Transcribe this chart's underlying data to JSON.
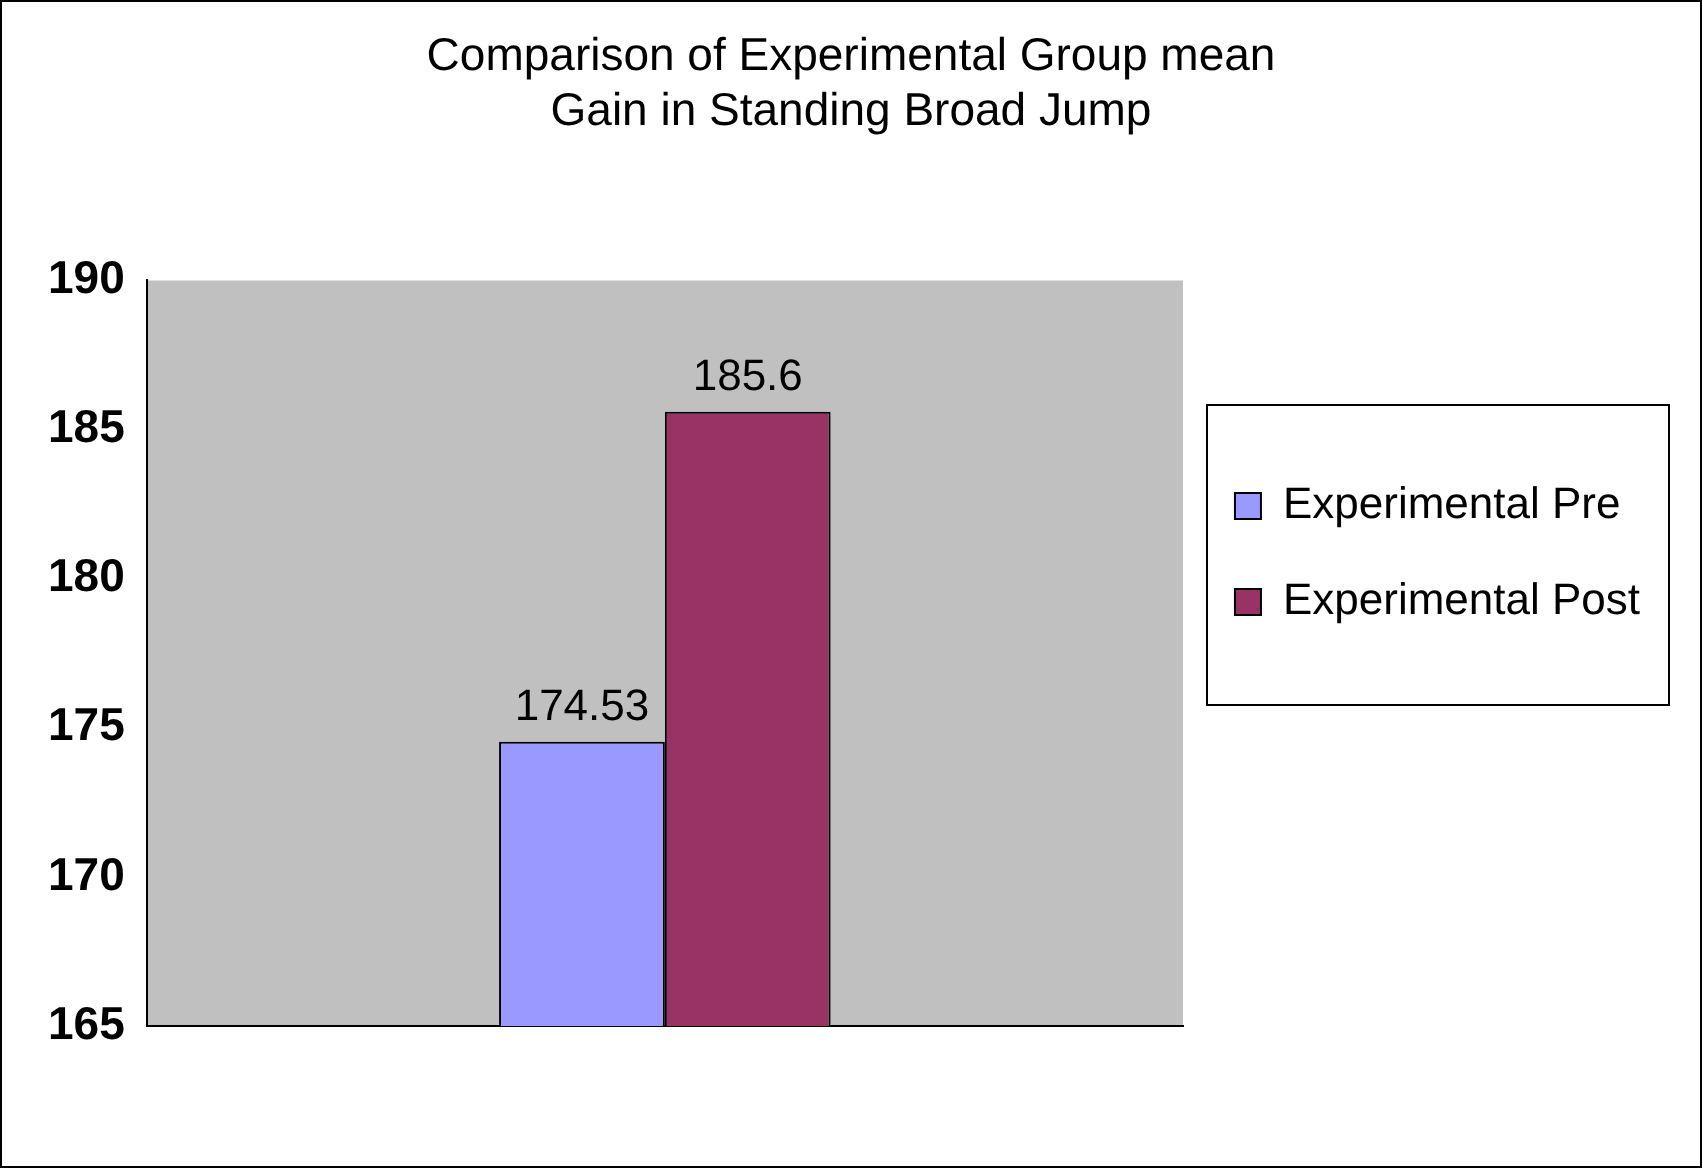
{
  "chart_data": {
    "type": "bar",
    "title": "Comparison of Experimental Group mean Gain in Standing Broad Jump",
    "categories": [
      null
    ],
    "series": [
      {
        "name": "Experimental Pre",
        "color": "#9999ff",
        "values": [
          174.53
        ]
      },
      {
        "name": "Experimental Post",
        "color": "#993366",
        "values": [
          185.6
        ]
      }
    ],
    "ylim": [
      165,
      190
    ],
    "yticks": [
      165,
      170,
      175,
      180,
      185,
      190
    ],
    "grid": false,
    "legend": "right",
    "data_labels": true
  }
}
